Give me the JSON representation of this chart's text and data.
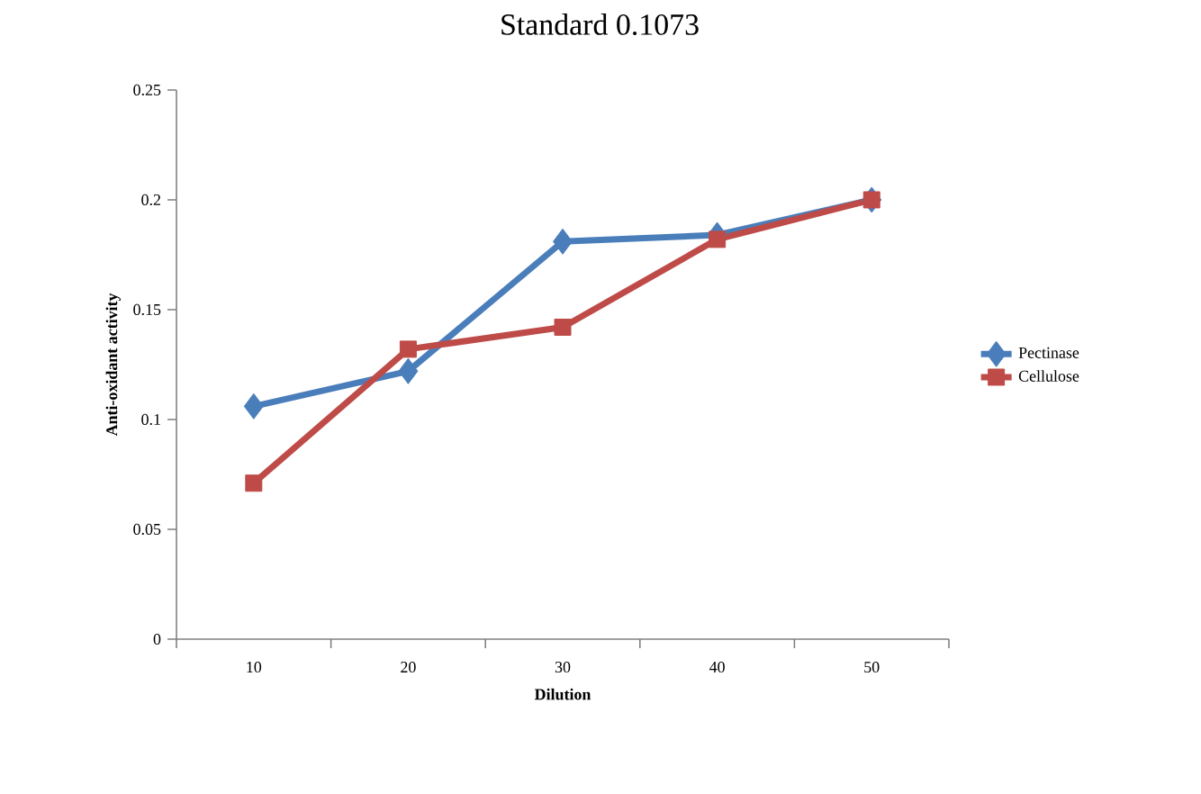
{
  "chart_data": {
    "type": "line",
    "title": "Standard 0.1073",
    "xlabel": "Dilution",
    "ylabel": "Anti-oxidant activity",
    "categories": [
      "10",
      "20",
      "30",
      "40",
      "50"
    ],
    "series": [
      {
        "name": "Pectinase",
        "color": "#4a7ebb",
        "marker": "diamond",
        "values": [
          0.106,
          0.122,
          0.181,
          0.184,
          0.2
        ]
      },
      {
        "name": "Cellulose",
        "color": "#be4b48",
        "marker": "square",
        "values": [
          0.071,
          0.132,
          0.142,
          0.182,
          0.2
        ]
      }
    ],
    "ylim": [
      0,
      0.25
    ],
    "yticks": [
      0,
      0.05,
      0.1,
      0.15,
      0.2,
      0.25
    ],
    "grid": false,
    "legend": "right",
    "line_style": "solid"
  }
}
